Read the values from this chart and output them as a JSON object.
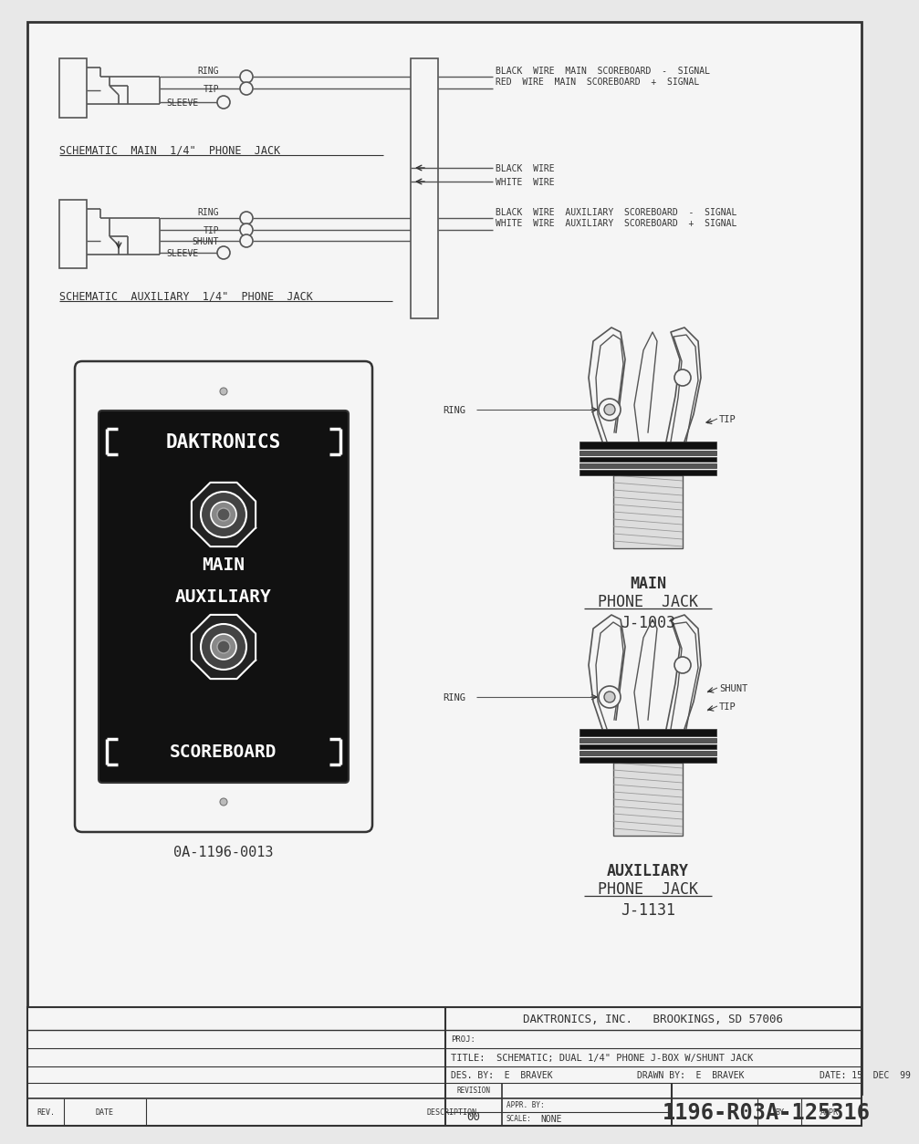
{
  "bg_color": "#e8e8e8",
  "paper_color": "#f5f5f5",
  "line_color": "#555555",
  "dark_color": "#333333",
  "title_company": "DAKTRONICS, INC.   BROOKINGS, SD 57006",
  "title_proj": "PROJ:",
  "title_title": "TITLE:  SCHEMATIC; DUAL 1/4\" PHONE J-BOX W/SHUNT JACK",
  "title_des": "DES. BY:  E  BRAVEK",
  "title_drawn": "DRAWN BY:  E  BRAVEK",
  "title_date": "DATE: 15  DEC  99",
  "title_revision_label": "REVISION",
  "title_revision": "00",
  "title_appr": "APPR. BY:",
  "title_scale_label": "SCALE:",
  "title_scale": "NONE",
  "title_number": "1196-R03A-125316",
  "rev_label": "REV.",
  "date_label": "DATE",
  "desc_label": "DESCRIPTION",
  "by_label": "BY",
  "appr_label": "APPR.",
  "schematic_main_label": "SCHEMATIC  MAIN  1/4\"  PHONE  JACK",
  "schematic_aux_label": "SCHEMATIC  AUXILIARY  1/4\"  PHONE  JACK",
  "part_number": "0A-1196-0013",
  "ring_label": "RING",
  "tip_label": "TIP",
  "sleeve_label": "SLEEVE",
  "shunt_label": "SHUNT",
  "black_wire_main_label": "BLACK  WIRE  MAIN  SCOREBOARD  -  SIGNAL",
  "red_wire_main_label": "RED  WIRE  MAIN  SCOREBOARD  +  SIGNAL",
  "black_wire_label": "BLACK  WIRE",
  "white_wire_label": "WHITE  WIRE",
  "black_wire_aux_label": "BLACK  WIRE  AUXILIARY  SCOREBOARD  -  SIGNAL",
  "white_wire_aux_label": "WHITE  WIRE  AUXILIARY  SCOREBOARD  +  SIGNAL",
  "main_jack_label1": "MAIN",
  "main_jack_label2": "PHONE  JACK",
  "main_jack_label3": "J-1003",
  "aux_jack_label1": "AUXILIARY",
  "aux_jack_label2": "PHONE  JACK",
  "aux_jack_label3": "J-1131",
  "daktronics_label": "DAKTRONICS",
  "main_label": "MAIN",
  "auxiliary_label": "AUXILIARY",
  "scoreboard_label": "SCOREBOARD"
}
